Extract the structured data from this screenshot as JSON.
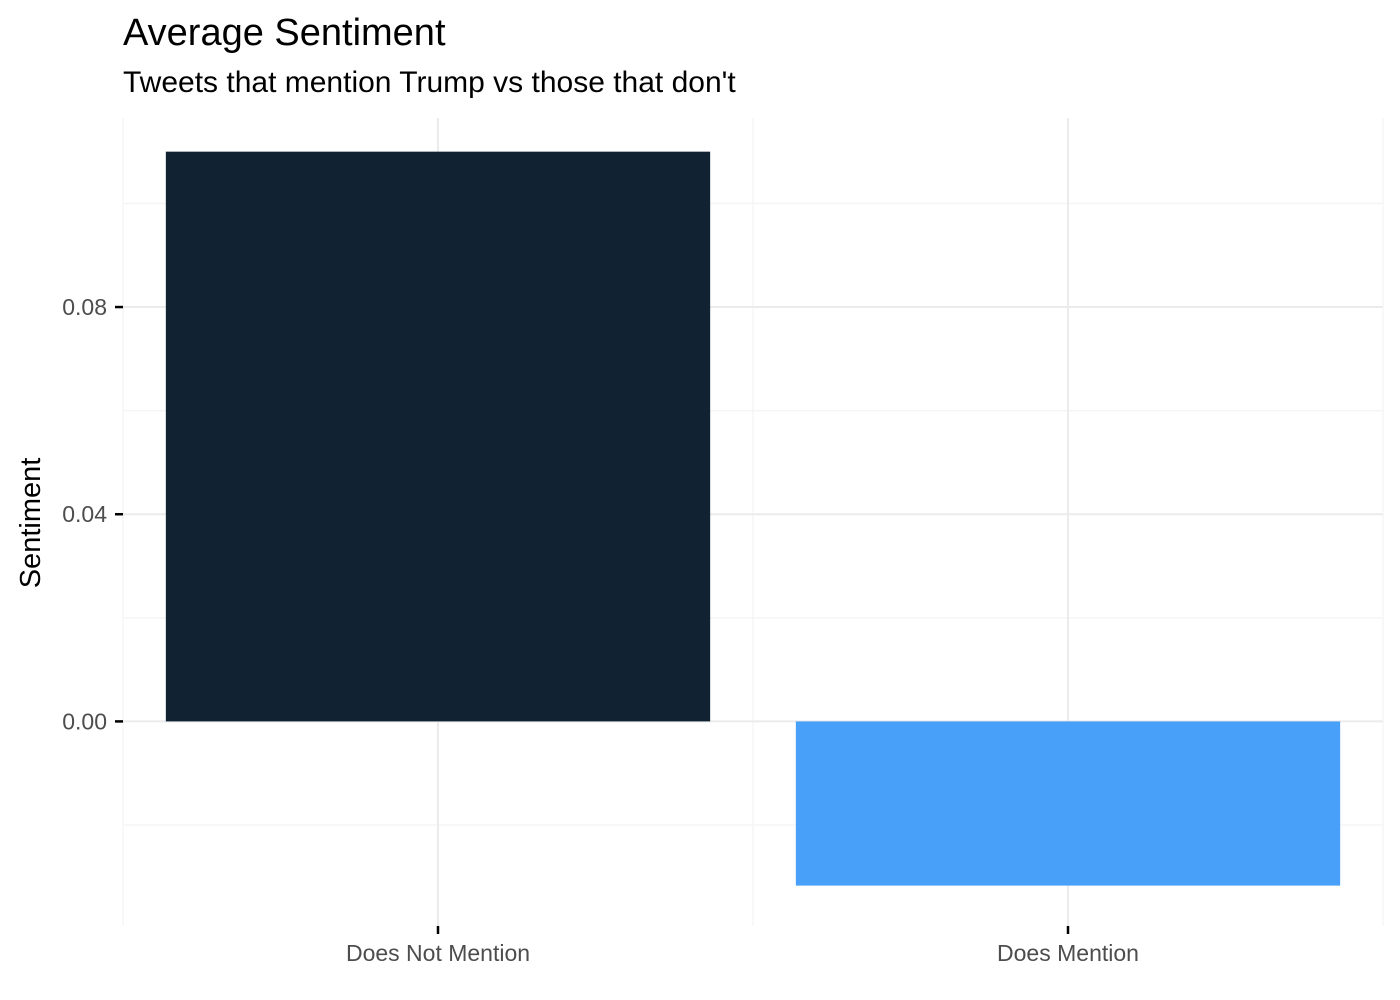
{
  "chart_data": {
    "type": "bar",
    "title": "Average Sentiment",
    "subtitle": "Tweets that mention Trump vs those that don't",
    "xlabel": "",
    "ylabel": "Sentiment",
    "categories": [
      "Does Not Mention",
      "Does Mention"
    ],
    "values": [
      0.11,
      -0.0317
    ],
    "colors": [
      "#112233",
      "#48A0F8"
    ],
    "ylim": [
      -0.0395,
      0.1165
    ],
    "yticks": [
      0.0,
      0.04,
      0.08
    ],
    "ytick_labels": [
      "0.00",
      "0.04",
      "0.08"
    ],
    "grid": true,
    "legend": "none"
  }
}
